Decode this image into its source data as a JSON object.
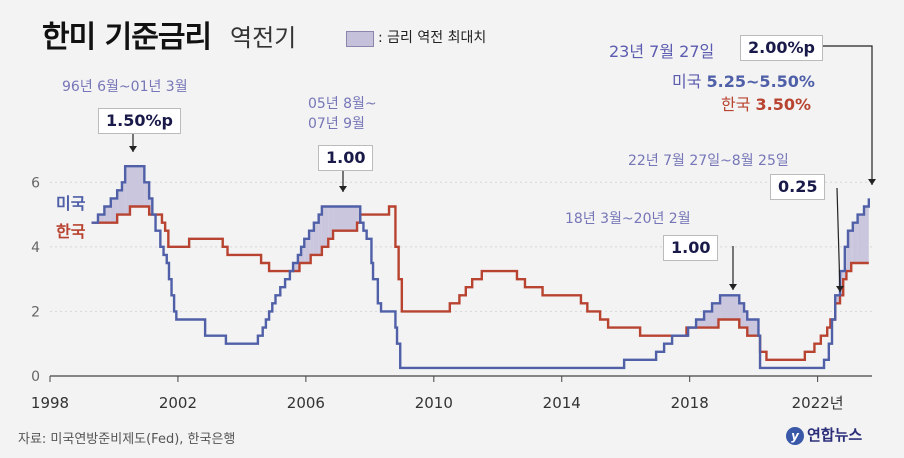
{
  "title": "한미 기준금리",
  "subtitle": "역전기",
  "legend": {
    "label": ": 금리 역전 최대치"
  },
  "colors": {
    "us": "#4f5fa8",
    "kr": "#b84330",
    "gap_fill": "#c5c1da",
    "background": "#f3f3f3"
  },
  "annotations": {
    "a1_period": "96년 6월~01년 3월",
    "a1_value": "1.50%p",
    "a2_period_line1": "05년 8월~",
    "a2_period_line2": "07년 9월",
    "a2_value": "1.00",
    "a3_period": "18년 3월~20년 2월",
    "a3_value": "1.00",
    "a4_period": "22년 7월 27일~8월 25일",
    "a4_value": "0.25",
    "a5_date": "23년 7월 27일",
    "a5_value": "2.00%p",
    "a5_us_prefix": "미국",
    "a5_us_value": "5.25~5.50%",
    "a5_kr_prefix": "한국",
    "a5_kr_value": "3.50%"
  },
  "series_labels": {
    "us": "미국",
    "kr": "한국"
  },
  "source": "자료: 미국연방준비제도(Fed), 한국은행",
  "logo": {
    "mark": "y",
    "text": "연합뉴스"
  },
  "chart_data": {
    "type": "line",
    "title": "한미 기준금리 역전기",
    "xlim": [
      1998,
      2023.7
    ],
    "ylim": [
      0,
      7
    ],
    "x_ticks": [
      {
        "value": 1998,
        "label": "1998"
      },
      {
        "value": 2002,
        "label": "2002"
      },
      {
        "value": 2006,
        "label": "2006"
      },
      {
        "value": 2010,
        "label": "2010"
      },
      {
        "value": 2014,
        "label": "2014"
      },
      {
        "value": 2018,
        "label": "2018"
      },
      {
        "value": 2022,
        "label": "2022년"
      }
    ],
    "y_ticks": [
      {
        "value": 0,
        "label": "0"
      },
      {
        "value": 2,
        "label": "2"
      },
      {
        "value": 4,
        "label": "4"
      },
      {
        "value": 6,
        "label": "6"
      }
    ],
    "grid": "horizontal",
    "series": [
      {
        "name": "미국",
        "points": [
          [
            1999.3,
            4.75
          ],
          [
            1999.5,
            5.0
          ],
          [
            1999.7,
            5.25
          ],
          [
            1999.9,
            5.5
          ],
          [
            2000.1,
            5.75
          ],
          [
            2000.25,
            6.0
          ],
          [
            2000.35,
            6.5
          ],
          [
            2000.95,
            6.0
          ],
          [
            2001.1,
            5.5
          ],
          [
            2001.2,
            5.0
          ],
          [
            2001.3,
            4.5
          ],
          [
            2001.45,
            4.0
          ],
          [
            2001.55,
            3.75
          ],
          [
            2001.65,
            3.5
          ],
          [
            2001.72,
            3.0
          ],
          [
            2001.8,
            2.5
          ],
          [
            2001.88,
            2.0
          ],
          [
            2001.95,
            1.75
          ],
          [
            2002.85,
            1.25
          ],
          [
            2003.5,
            1.0
          ],
          [
            2004.5,
            1.25
          ],
          [
            2004.65,
            1.5
          ],
          [
            2004.75,
            1.75
          ],
          [
            2004.85,
            2.0
          ],
          [
            2004.95,
            2.25
          ],
          [
            2005.05,
            2.5
          ],
          [
            2005.2,
            2.75
          ],
          [
            2005.35,
            3.0
          ],
          [
            2005.5,
            3.25
          ],
          [
            2005.6,
            3.5
          ],
          [
            2005.75,
            3.75
          ],
          [
            2005.85,
            4.0
          ],
          [
            2005.95,
            4.25
          ],
          [
            2006.1,
            4.5
          ],
          [
            2006.25,
            4.75
          ],
          [
            2006.4,
            5.0
          ],
          [
            2006.5,
            5.25
          ],
          [
            2007.7,
            4.75
          ],
          [
            2007.8,
            4.5
          ],
          [
            2007.9,
            4.25
          ],
          [
            2008.05,
            3.5
          ],
          [
            2008.1,
            3.0
          ],
          [
            2008.25,
            2.25
          ],
          [
            2008.35,
            2.0
          ],
          [
            2008.8,
            1.5
          ],
          [
            2008.85,
            1.0
          ],
          [
            2008.95,
            0.25
          ],
          [
            2015.95,
            0.5
          ],
          [
            2016.95,
            0.75
          ],
          [
            2017.2,
            1.0
          ],
          [
            2017.45,
            1.25
          ],
          [
            2017.95,
            1.5
          ],
          [
            2018.2,
            1.75
          ],
          [
            2018.45,
            2.0
          ],
          [
            2018.7,
            2.25
          ],
          [
            2018.95,
            2.5
          ],
          [
            2019.55,
            2.25
          ],
          [
            2019.7,
            2.0
          ],
          [
            2019.8,
            1.75
          ],
          [
            2020.15,
            1.25
          ],
          [
            2020.2,
            0.25
          ],
          [
            2022.2,
            0.5
          ],
          [
            2022.35,
            1.0
          ],
          [
            2022.45,
            1.75
          ],
          [
            2022.55,
            2.5
          ],
          [
            2022.7,
            3.25
          ],
          [
            2022.85,
            4.0
          ],
          [
            2022.95,
            4.5
          ],
          [
            2023.1,
            4.75
          ],
          [
            2023.25,
            5.0
          ],
          [
            2023.45,
            5.25
          ],
          [
            2023.6,
            5.5
          ]
        ]
      },
      {
        "name": "한국",
        "points": [
          [
            1999.3,
            4.75
          ],
          [
            2000.1,
            5.0
          ],
          [
            2000.5,
            5.25
          ],
          [
            2001.1,
            5.0
          ],
          [
            2001.5,
            4.75
          ],
          [
            2001.6,
            4.5
          ],
          [
            2001.7,
            4.0
          ],
          [
            2002.35,
            4.25
          ],
          [
            2003.4,
            4.0
          ],
          [
            2003.55,
            3.75
          ],
          [
            2004.6,
            3.5
          ],
          [
            2004.85,
            3.25
          ],
          [
            2005.8,
            3.5
          ],
          [
            2006.15,
            3.75
          ],
          [
            2006.5,
            4.0
          ],
          [
            2006.7,
            4.25
          ],
          [
            2006.85,
            4.5
          ],
          [
            2007.6,
            4.75
          ],
          [
            2007.7,
            5.0
          ],
          [
            2008.6,
            5.25
          ],
          [
            2008.8,
            4.0
          ],
          [
            2008.9,
            3.0
          ],
          [
            2009.0,
            2.0
          ],
          [
            2010.5,
            2.25
          ],
          [
            2010.8,
            2.5
          ],
          [
            2011.0,
            2.75
          ],
          [
            2011.2,
            3.0
          ],
          [
            2011.5,
            3.25
          ],
          [
            2012.6,
            3.0
          ],
          [
            2012.85,
            2.75
          ],
          [
            2013.4,
            2.5
          ],
          [
            2014.6,
            2.25
          ],
          [
            2014.8,
            2.0
          ],
          [
            2015.2,
            1.75
          ],
          [
            2015.45,
            1.5
          ],
          [
            2016.45,
            1.25
          ],
          [
            2017.9,
            1.5
          ],
          [
            2018.9,
            1.75
          ],
          [
            2019.55,
            1.5
          ],
          [
            2019.8,
            1.25
          ],
          [
            2020.2,
            0.75
          ],
          [
            2020.4,
            0.5
          ],
          [
            2021.6,
            0.75
          ],
          [
            2021.9,
            1.0
          ],
          [
            2022.1,
            1.25
          ],
          [
            2022.3,
            1.5
          ],
          [
            2022.4,
            1.75
          ],
          [
            2022.55,
            2.25
          ],
          [
            2022.7,
            2.5
          ],
          [
            2022.8,
            3.0
          ],
          [
            2022.9,
            3.25
          ],
          [
            2023.05,
            3.5
          ],
          [
            2023.6,
            3.5
          ]
        ]
      }
    ]
  }
}
